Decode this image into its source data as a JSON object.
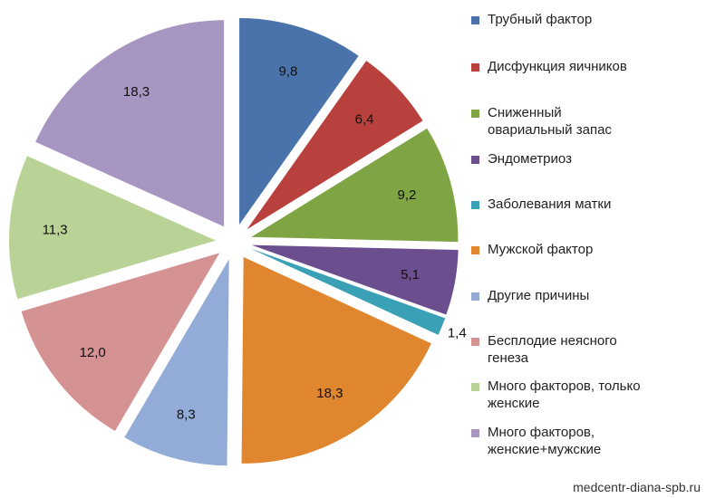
{
  "chart_data": {
    "type": "pie",
    "title": "",
    "slices": [
      {
        "label": "Трубный фактор",
        "value": 9.8,
        "value_label": "9,8",
        "color": "#4a73ac"
      },
      {
        "label": "Дисфункция яичников",
        "value": 6.4,
        "value_label": "6,4",
        "color": "#b8403d"
      },
      {
        "label": "Сниженный овариальный запас",
        "value": 9.2,
        "value_label": "9,2",
        "color": "#7ea443"
      },
      {
        "label": "Эндометриоз",
        "value": 5.1,
        "value_label": "5,1",
        "color": "#6a4e8e"
      },
      {
        "label": "Заболевания матки",
        "value": 1.4,
        "value_label": "1,4",
        "color": "#3aa0b6"
      },
      {
        "label": "Мужской фактор",
        "value": 18.3,
        "value_label": "18,3",
        "color": "#e0862f"
      },
      {
        "label": "Другие причины",
        "value": 8.3,
        "value_label": "8,3",
        "color": "#93abd7"
      },
      {
        "label": "Бесплодие неясного генеза",
        "value": 12.0,
        "value_label": "12,0",
        "color": "#d59293"
      },
      {
        "label": "Много факторов, только женские",
        "value": 11.3,
        "value_label": "11,3",
        "color": "#b9d396"
      },
      {
        "label": "Много факторов, женские+мужские",
        "value": 18.3,
        "value_label": "18,3",
        "color": "#a796c1"
      }
    ],
    "legend_position": "right",
    "exploded": true
  },
  "legend": {
    "items": [
      {
        "line1": "Трубный фактор",
        "line2": ""
      },
      {
        "line1": "Дисфункция яичников",
        "line2": ""
      },
      {
        "line1": "Сниженный",
        "line2": "овариальный запас"
      },
      {
        "line1": "Эндометриоз",
        "line2": ""
      },
      {
        "line1": "Заболевания матки",
        "line2": ""
      },
      {
        "line1": "Мужской фактор",
        "line2": ""
      },
      {
        "line1": "Другие причины",
        "line2": ""
      },
      {
        "line1": "Бесплодие неясного",
        "line2": "генеза"
      },
      {
        "line1": "Много факторов, только",
        "line2": "женские"
      },
      {
        "line1": "Много факторов,",
        "line2": "женские+мужские"
      }
    ]
  },
  "watermark": "medcentr-diana-spb.ru"
}
